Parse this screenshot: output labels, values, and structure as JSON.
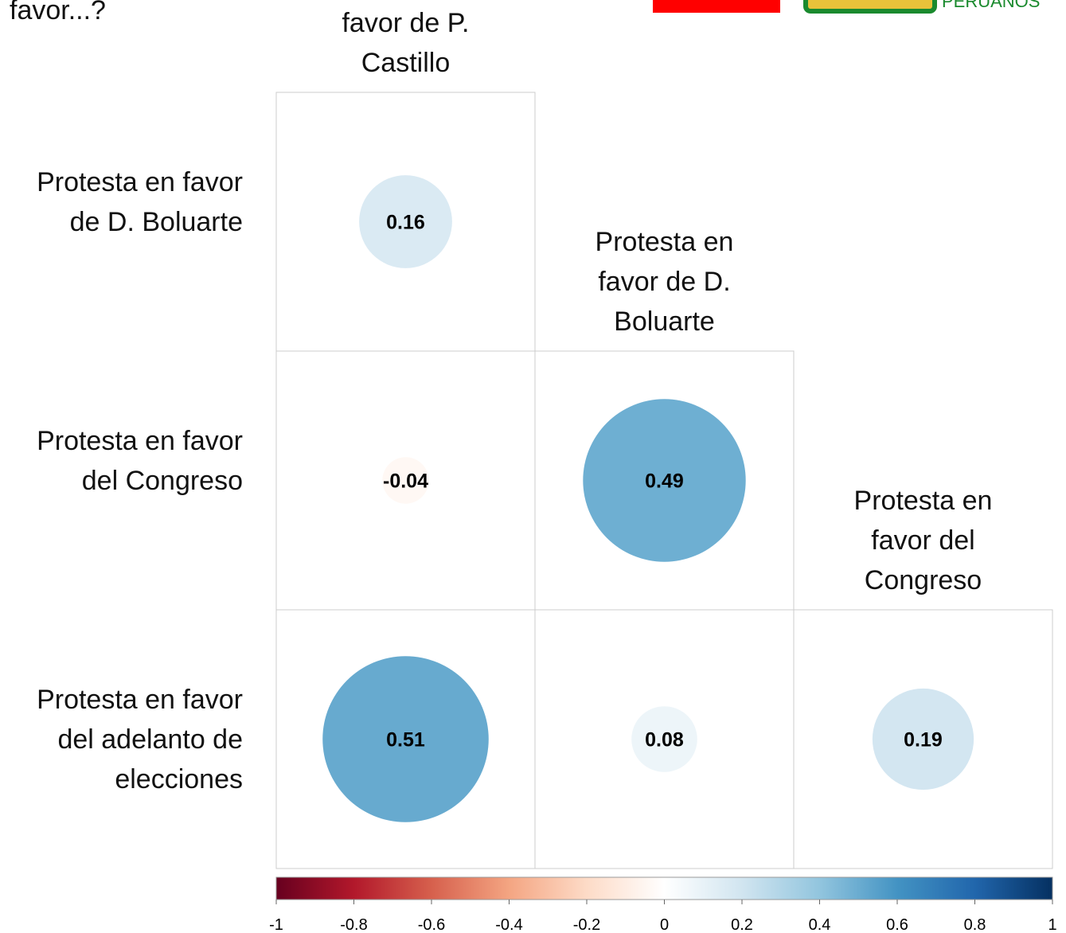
{
  "header_text": "favor...?",
  "logo_text": "PERUANOS",
  "chart_data": {
    "type": "correlation",
    "columns": [
      "Protesta en favor de P. Castillo",
      "Protesta en favor de D. Boluarte",
      "Protesta en favor del Congreso"
    ],
    "rows": [
      "Protesta en favor de D. Boluarte",
      "Protesta en favor del Congreso",
      "Protesta en favor del adelanto de elecciones"
    ],
    "values": [
      [
        0.16
      ],
      [
        -0.04,
        0.49
      ],
      [
        0.51,
        0.08,
        0.19
      ]
    ],
    "colorlim": [
      -1,
      1
    ],
    "colorticks": [
      -1,
      -0.8,
      -0.6,
      -0.4,
      -0.2,
      0,
      0.2,
      0.4,
      0.6,
      0.8,
      1
    ],
    "colormap": [
      "#67001f",
      "#b2182b",
      "#d6604d",
      "#f4a582",
      "#fddbc7",
      "#ffffff",
      "#d1e5f0",
      "#92c5de",
      "#4393c3",
      "#2166ac",
      "#053061"
    ]
  }
}
